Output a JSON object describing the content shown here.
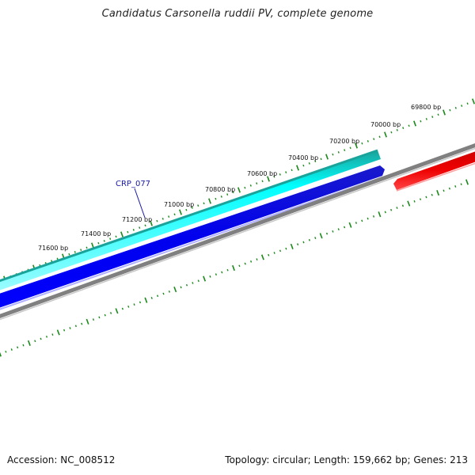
{
  "title": "Candidatus Carsonella ruddii PV, complete genome",
  "footer": {
    "accession": "Accession: NC_008512",
    "summary": "Topology: circular; Length: 159,662 bp; Genes: 213"
  },
  "map": {
    "tick_labels": [
      "69800 bp",
      "70000 bp",
      "70200 bp",
      "70400 bp",
      "70600 bp",
      "70800 bp",
      "71000 bp",
      "71200 bp",
      "71400 bp",
      "71600 bp"
    ],
    "gene_label": "CRP_077",
    "colors": {
      "tick": "#1a8a1a",
      "forward_gene": "#00ffff",
      "forward_gene_edge": "#1aa39a",
      "reverse_gene": "#0000ee",
      "backbone": "#808080",
      "other_gene": "#ee0000",
      "gene_label": "#1a1aaa"
    }
  }
}
